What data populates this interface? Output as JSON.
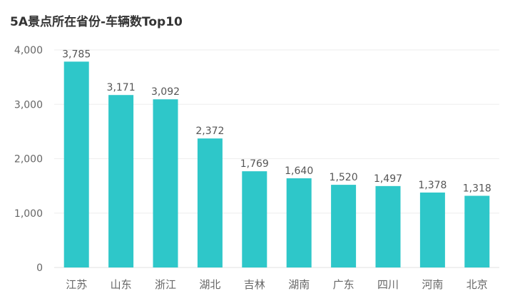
{
  "chart_data": {
    "type": "bar",
    "title": "5A景点所在省份-车辆数Top10",
    "xlabel": "",
    "ylabel": "",
    "categories": [
      "江苏",
      "山东",
      "浙江",
      "湖北",
      "吉林",
      "湖南",
      "广东",
      "四川",
      "河南",
      "北京"
    ],
    "values": [
      3785,
      3171,
      3092,
      2372,
      1769,
      1640,
      1520,
      1497,
      1378,
      1318
    ],
    "value_labels": [
      "3,785",
      "3,171",
      "3,092",
      "2,372",
      "1,769",
      "1,640",
      "1,520",
      "1,497",
      "1,378",
      "1,318"
    ],
    "ylim": [
      0,
      4000
    ],
    "yticks": [
      0,
      1000,
      2000,
      3000,
      4000
    ],
    "ytick_labels": [
      "0",
      "1,000",
      "2,000",
      "3,000",
      "4,000"
    ],
    "grid": true,
    "legend": "none",
    "colors": {
      "bar": "#2EC7C9",
      "grid": "#EEEEEE",
      "axis_text": "#666666",
      "label_text": "#555555",
      "title": "#333333"
    }
  }
}
